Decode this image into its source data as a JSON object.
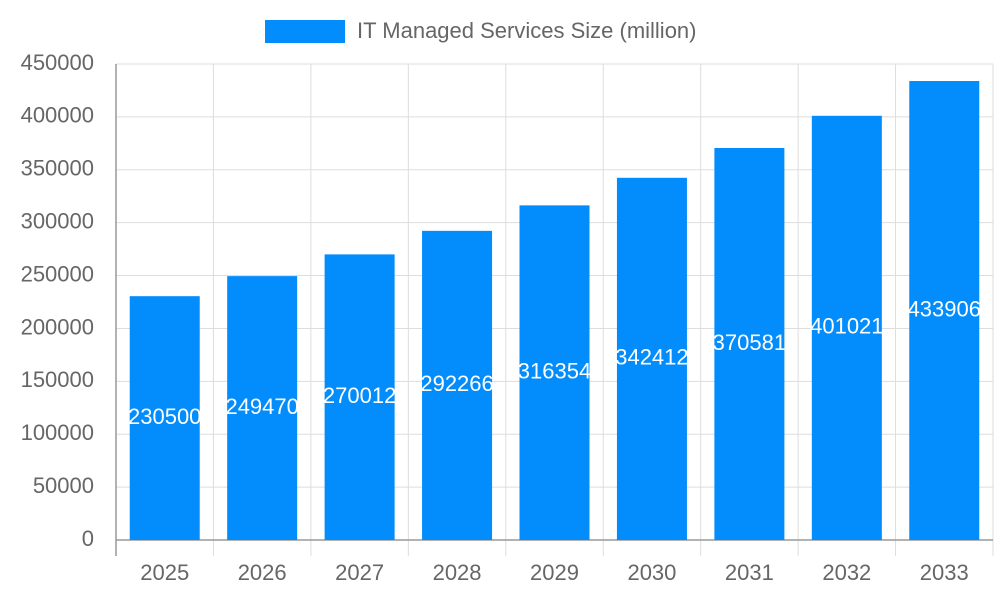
{
  "chart_data": {
    "type": "bar",
    "categories": [
      "2025",
      "2026",
      "2027",
      "2028",
      "2029",
      "2030",
      "2031",
      "2032",
      "2033"
    ],
    "series": [
      {
        "name": "IT Managed Services Size (million)",
        "color": "#038cfc",
        "values": [
          230500,
          249470,
          270012,
          292266,
          316354,
          342412,
          370581,
          401021,
          433906
        ]
      }
    ],
    "ylim": [
      0,
      450000
    ],
    "yticks": [
      0,
      50000,
      100000,
      150000,
      200000,
      250000,
      300000,
      350000,
      400000,
      450000
    ],
    "grid": true,
    "legend": "top",
    "data_labels": true
  }
}
